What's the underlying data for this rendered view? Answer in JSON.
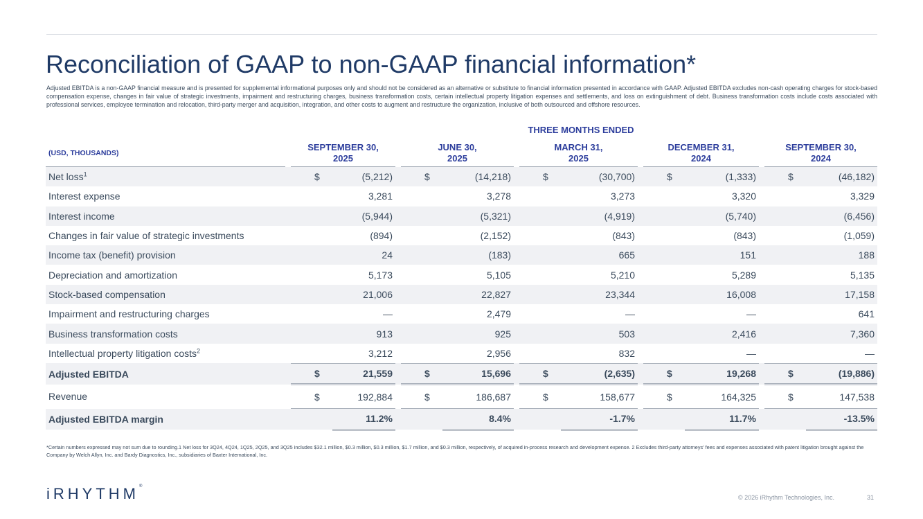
{
  "title": "Reconciliation of GAAP to non-GAAP financial information*",
  "intro": "Adjusted EBITDA is a non-GAAP financial measure and is presented for supplemental informational purposes only and should not be considered as an alternative or substitute to financial information presented in accordance with GAAP. Adjusted EBITDA excludes non-cash operating charges for stock-based compensation expense, changes in fair value of strategic investments, impairment and restructuring charges, business transformation costs, certain intellectual property litigation expenses and settlements, and loss on extinguishment of debt. Business transformation costs include costs associated with professional services, employee termination and relocation, third-party merger and acquisition, integration, and other costs to augment and restructure the organization, inclusive of both outsourced and offshore resources.",
  "table": {
    "period_header": "THREE MONTHS ENDED",
    "unit_label": "(USD, THOUSANDS)",
    "columns": [
      {
        "line1": "SEPTEMBER 30,",
        "line2": "2025"
      },
      {
        "line1": "JUNE 30,",
        "line2": "2025"
      },
      {
        "line1": "MARCH 31,",
        "line2": "2025"
      },
      {
        "line1": "DECEMBER 31,",
        "line2": "2024"
      },
      {
        "line1": "SEPTEMBER 30,",
        "line2": "2024"
      }
    ],
    "rows": [
      {
        "label": "Net loss",
        "sup": "1",
        "cur": "$",
        "values": [
          "(5,212)",
          "(14,218)",
          "(30,700)",
          "(1,333)",
          "(46,182)"
        ]
      },
      {
        "label": "Interest expense",
        "values": [
          "3,281",
          "3,278",
          "3,273",
          "3,320",
          "3,329"
        ]
      },
      {
        "label": "Interest income",
        "values": [
          "(5,944)",
          "(5,321)",
          "(4,919)",
          "(5,740)",
          "(6,456)"
        ]
      },
      {
        "label": "Changes in fair value of strategic investments",
        "values": [
          "(894)",
          "(2,152)",
          "(843)",
          "(843)",
          "(1,059)"
        ]
      },
      {
        "label": "Income tax (benefit) provision",
        "values": [
          "24",
          "(183)",
          "665",
          "151",
          "188"
        ]
      },
      {
        "label": "Depreciation and amortization",
        "values": [
          "5,173",
          "5,105",
          "5,210",
          "5,289",
          "5,135"
        ]
      },
      {
        "label": "Stock-based compensation",
        "values": [
          "21,006",
          "22,827",
          "23,344",
          "16,008",
          "17,158"
        ]
      },
      {
        "label": "Impairment and restructuring charges",
        "values": [
          "—",
          "2,479",
          "—",
          "—",
          "641"
        ]
      },
      {
        "label": "Business transformation costs",
        "values": [
          "913",
          "925",
          "503",
          "2,416",
          "7,360"
        ]
      },
      {
        "label": "Intellectual property litigation costs",
        "sup": "2",
        "values": [
          "3,212",
          "2,956",
          "832",
          "—",
          "—"
        ]
      },
      {
        "label": "Adjusted EBITDA",
        "cur": "$",
        "values": [
          "21,559",
          "15,696",
          "(2,635)",
          "19,268",
          "(19,886)"
        ]
      },
      {
        "label": "Revenue",
        "cur": "$",
        "values": [
          "192,884",
          "186,687",
          "158,677",
          "164,325",
          "147,538"
        ]
      },
      {
        "label": "Adjusted EBITDA margin",
        "values": [
          "11.2%",
          "8.4%",
          "-1.7%",
          "11.7%",
          "-13.5%"
        ]
      }
    ]
  },
  "footnote": "*Certain numbers expressed may not sum due to rounding.1 Net loss for 3Q24, 4Q24, 1Q25, 2Q25, and 3Q25 includes $32.1 million, $0.3 million, $0.3 million, $1.7 million, and $0.3 million, respectively, of acquired in-process research and development expense. 2 Excludes third-party attorneys' fees and expenses associated with patent litigation brought against the Company by Welch Allyn, Inc. and Bardy Diagnostics, Inc., subsidiaries of Baxter International, Inc.",
  "logo": {
    "text": "iRHYTHM",
    "mark": "®"
  },
  "copyright": "© 2026 iRhythm Technologies, Inc.",
  "page_number": "31"
}
